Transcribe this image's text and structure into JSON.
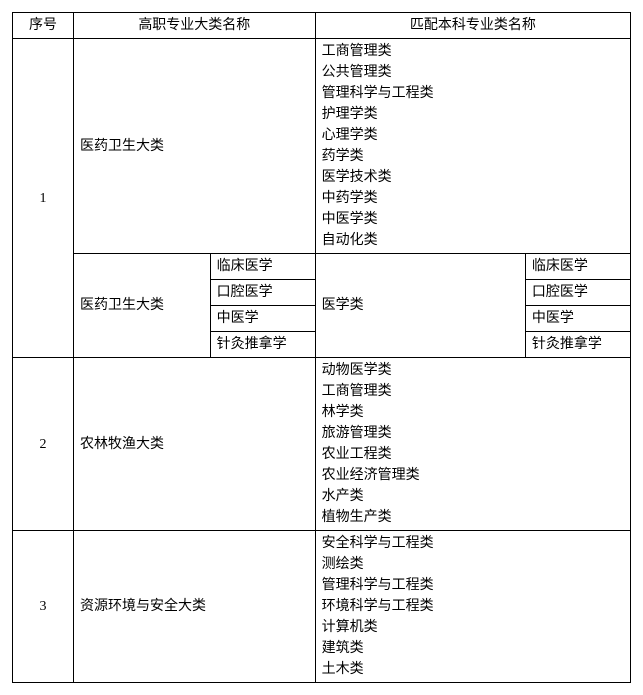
{
  "headers": {
    "seq": "序号",
    "vocational": "高职专业大类名称",
    "undergrad": "匹配本科专业类名称"
  },
  "rows": [
    {
      "seq": "1",
      "block1": {
        "vocational": "医药卫生大类",
        "undergrad_list": [
          "工商管理类",
          "公共管理类",
          "管理科学与工程类",
          "护理学类",
          "心理学类",
          "药学类",
          "医学技术类",
          "中药学类",
          "中医学类",
          "自动化类"
        ]
      },
      "block2": {
        "vocational": "医药卫生大类",
        "undergrad_mid": "医学类",
        "sub": [
          {
            "voc": "临床医学",
            "und": "临床医学"
          },
          {
            "voc": "口腔医学",
            "und": "口腔医学"
          },
          {
            "voc": "中医学",
            "und": "中医学"
          },
          {
            "voc": "针灸推拿学",
            "und": "针灸推拿学"
          }
        ]
      }
    },
    {
      "seq": "2",
      "vocational": "农林牧渔大类",
      "undergrad_list": [
        "动物医学类",
        "工商管理类",
        "林学类",
        "旅游管理类",
        "农业工程类",
        "农业经济管理类",
        "水产类",
        "植物生产类"
      ]
    },
    {
      "seq": "3",
      "vocational": "资源环境与安全大类",
      "undergrad_list": [
        "安全科学与工程类",
        "测绘类",
        "管理科学与工程类",
        "环境科学与工程类",
        "计算机类",
        "建筑类",
        "土木类"
      ]
    }
  ]
}
